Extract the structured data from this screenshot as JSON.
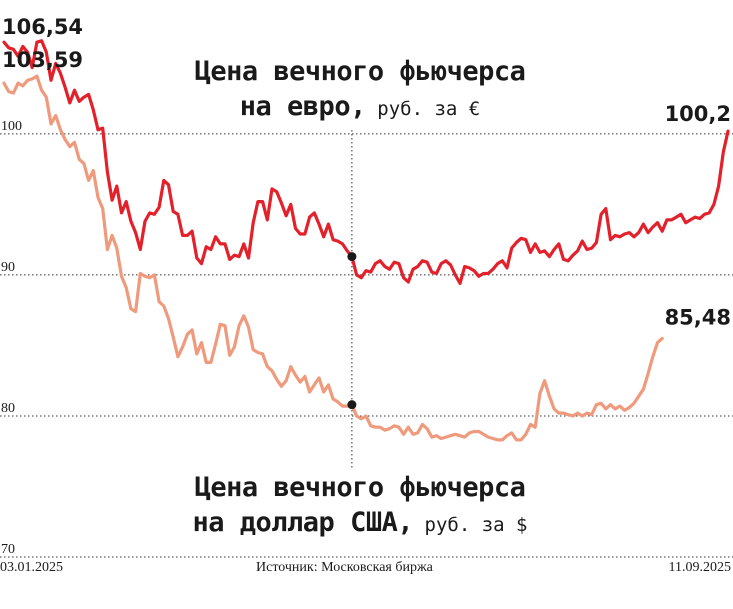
{
  "titles": {
    "eur_line1": "Цена вечного фьючерса",
    "eur_line2_bold": "на евро,",
    "eur_line2_unit": " руб. за €",
    "usd_line1": "Цена вечного фьючерса",
    "usd_line2_bold": "на доллар США,",
    "usd_line2_unit": " руб. за $"
  },
  "footer": {
    "start_date": "03.01.2025",
    "source": "Источник: Московская биржа",
    "end_date": "11.09.2025"
  },
  "colors": {
    "eur": "#e3212b",
    "usd": "#ef9a7c",
    "grid": "#333333",
    "marker": "#1a1a1a"
  },
  "chart_data": {
    "type": "line",
    "x_start": "03.01.2025",
    "x_end": "11.09.2025",
    "ylim": [
      70,
      108.5
    ],
    "yticks": [
      70,
      80,
      90,
      100
    ],
    "grid": "horizontal dotted",
    "annotations": [
      {
        "series": "eur",
        "position": "start",
        "label": "106,54"
      },
      {
        "series": "usd",
        "position": "start",
        "label": "103,59"
      },
      {
        "series": "eur",
        "position": "end",
        "label": "100,2"
      },
      {
        "series": "usd",
        "position": "end",
        "label": "85,48"
      }
    ],
    "series": [
      {
        "key": "eur",
        "values": [
          106.5,
          106.1,
          106.0,
          105.5,
          106.2,
          105.8,
          104.7,
          106.5,
          106.6,
          105.8,
          103.8,
          105.0,
          104.3,
          103.3,
          102.2,
          103.1,
          102.3,
          102.6,
          102.8,
          101.7,
          100.3,
          100.4,
          97.3,
          95.3,
          96.3,
          94.4,
          95.2,
          93.8,
          93.0,
          91.8,
          93.8,
          94.4,
          94.3,
          94.8,
          96.7,
          96.4,
          94.5,
          94.3,
          92.8,
          92.8,
          93.1,
          91.2,
          90.8,
          92.0,
          91.8,
          92.7,
          92.2,
          92.2,
          91.1,
          91.4,
          91.3,
          92.2,
          91.2,
          93.7,
          95.2,
          95.2,
          93.9,
          96.1,
          95.9,
          95.1,
          94.2,
          95.0,
          93.3,
          92.9,
          92.9,
          94.1,
          94.4,
          93.6,
          92.7,
          93.6,
          92.5,
          92.4,
          92.2,
          91.7,
          91.3,
          90.0,
          89.8,
          90.3,
          90.2,
          90.8,
          91.0,
          90.6,
          90.4,
          90.9,
          90.8,
          89.8,
          89.5,
          90.4,
          90.6,
          91.0,
          90.9,
          90.2,
          90.1,
          90.8,
          91.0,
          90.7,
          90.0,
          89.4,
          90.6,
          90.5,
          90.3,
          89.9,
          90.1,
          90.1,
          90.4,
          90.8,
          91.0,
          90.5,
          91.9,
          92.3,
          92.6,
          92.5,
          91.6,
          92.2,
          91.6,
          91.7,
          91.3,
          91.8,
          92.2,
          91.1,
          91.0,
          91.4,
          91.7,
          92.4,
          91.8,
          91.9,
          92.3,
          94.3,
          94.7,
          92.5,
          92.8,
          92.7,
          92.9,
          93.0,
          92.7,
          93.0,
          93.6,
          93.0,
          93.4,
          93.7,
          93.1,
          93.9,
          93.9,
          94.1,
          94.3,
          93.7,
          93.9,
          94.1,
          94.0,
          94.3,
          94.4,
          95.0,
          96.3,
          98.7,
          100.2
        ]
      },
      {
        "key": "usd",
        "values": [
          103.6,
          103.0,
          102.9,
          103.6,
          103.4,
          103.8,
          103.9,
          104.1,
          103.1,
          102.6,
          100.7,
          101.3,
          100.3,
          99.6,
          99.1,
          99.4,
          98.2,
          97.9,
          96.7,
          97.4,
          95.5,
          94.7,
          91.8,
          92.8,
          91.9,
          89.9,
          89.1,
          87.6,
          87.4,
          90.1,
          89.9,
          89.8,
          90.0,
          88.1,
          87.8,
          86.9,
          85.6,
          84.2,
          84.9,
          85.8,
          86.1,
          84.4,
          85.2,
          83.8,
          83.8,
          85.1,
          86.5,
          86.4,
          84.3,
          84.9,
          86.4,
          87.1,
          86.3,
          84.7,
          84.5,
          84.4,
          83.5,
          83.2,
          82.6,
          82.1,
          82.5,
          83.5,
          82.9,
          82.4,
          82.8,
          81.7,
          82.2,
          82.7,
          81.7,
          82.2,
          81.2,
          81.0,
          80.7,
          80.7,
          80.8,
          80.0,
          79.8,
          80.0,
          79.3,
          79.2,
          79.2,
          79.0,
          79.1,
          79.3,
          79.2,
          78.7,
          79.2,
          78.7,
          78.8,
          79.4,
          79.1,
          78.5,
          78.6,
          78.4,
          78.5,
          78.6,
          78.7,
          78.6,
          78.5,
          78.8,
          78.9,
          78.9,
          78.7,
          78.5,
          78.4,
          78.3,
          78.3,
          78.6,
          78.8,
          78.3,
          78.3,
          78.7,
          79.4,
          79.2,
          81.6,
          82.5,
          81.4,
          80.5,
          80.2,
          80.2,
          80.1,
          80.0,
          80.2,
          80.0,
          80.2,
          80.1,
          80.8,
          80.9,
          80.5,
          80.8,
          80.5,
          80.7,
          80.4,
          80.6,
          80.9,
          81.4,
          81.9,
          83.0,
          84.2,
          85.2,
          85.5
        ]
      }
    ]
  }
}
